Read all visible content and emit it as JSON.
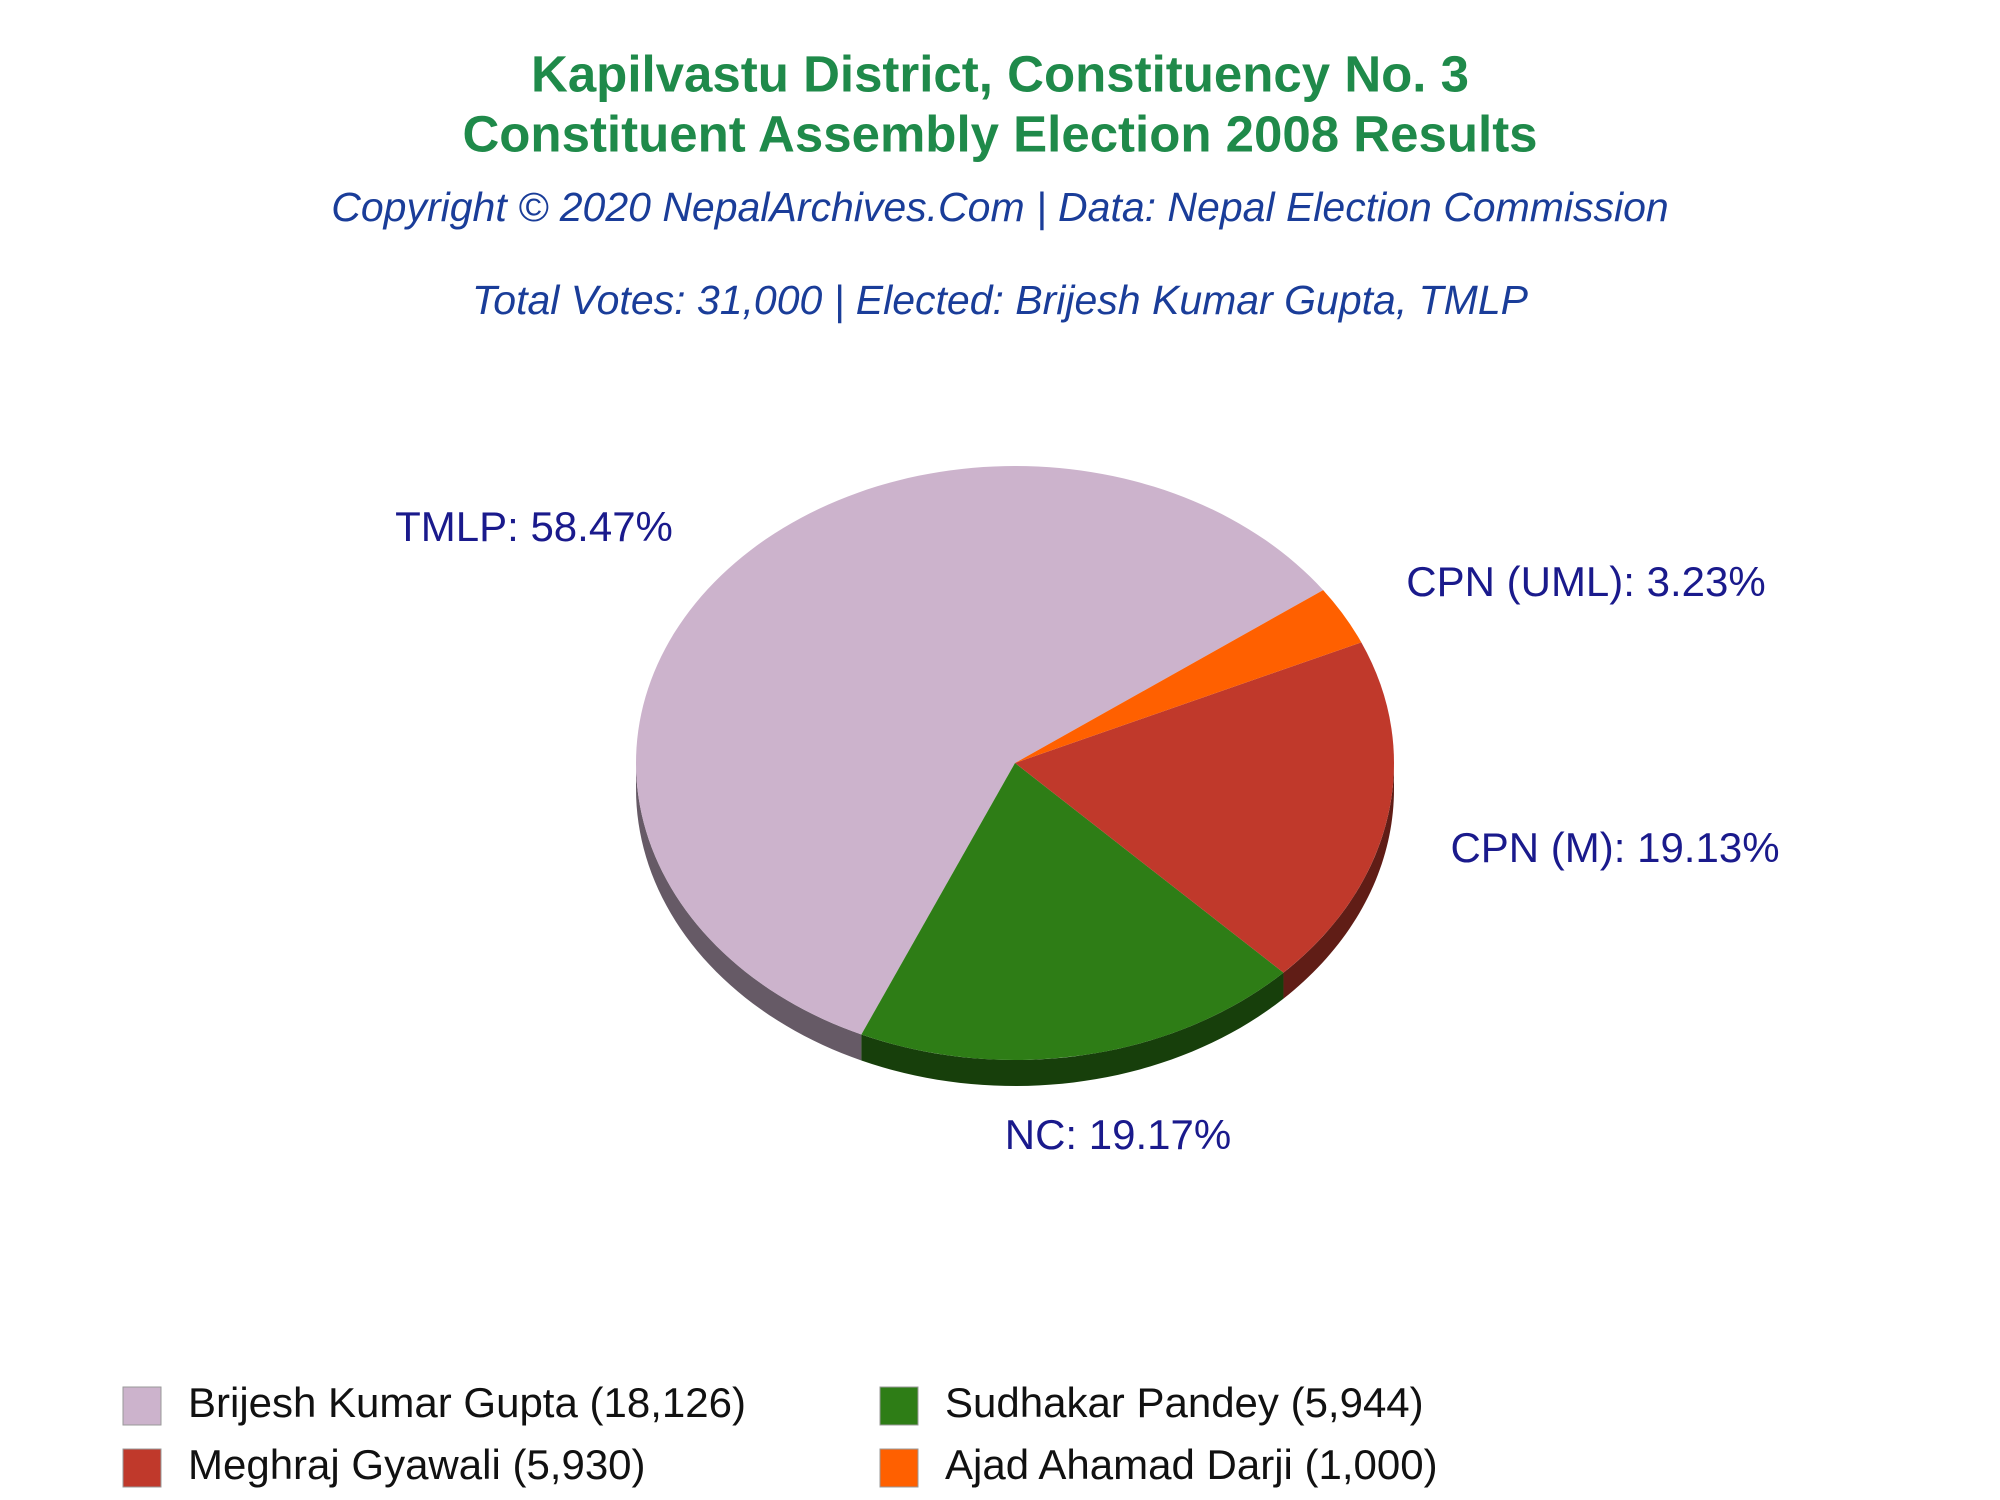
{
  "chart_data": {
    "type": "pie",
    "title": "Kapilvastu District, Constituency No. 3",
    "title_line2": "Constituent Assembly Election 2008 Results",
    "subtitle": "Copyright © 2020 NepalArchives.Com | Data: Nepal Election Commission",
    "subtitle_line2": "Total Votes: 31,000 | Elected: Brijesh Kumar Gupta, TMLP",
    "categories": [
      "Brijesh Kumar Gupta (18,126)",
      "Sudhakar Pandey (5,944)",
      "Meghraj Gyawali (5,930)",
      "Ajad Ahamad Darji (1,000)"
    ],
    "values": [
      58.47,
      19.17,
      19.13,
      3.23
    ],
    "value_labels": [
      "TMLP: 58.47%",
      "NC: 19.17%",
      "CPN (M): 19.13%",
      "CPN (UML): 3.23%"
    ],
    "colors": [
      "#ccb3cc",
      "#2e7d16",
      "#c0392b",
      "#ff6000"
    ]
  }
}
